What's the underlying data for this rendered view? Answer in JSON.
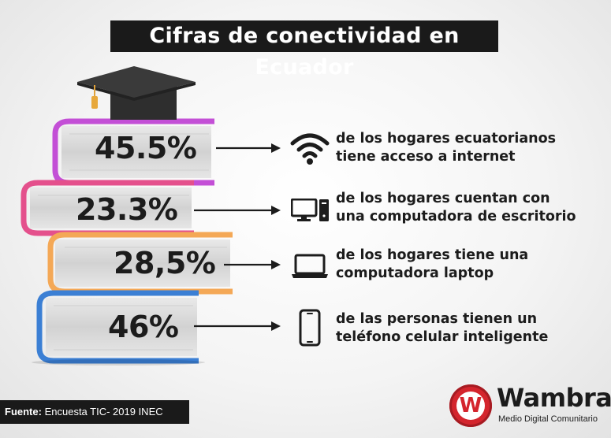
{
  "title": "Cifras de conectividad en Ecuador",
  "chart_data": {
    "type": "table",
    "title": "Cifras de conectividad en Ecuador",
    "rows": [
      {
        "value": "45.5%",
        "line1": "de los hogares ecuatorianos",
        "line2": "tiene acceso a internet",
        "icon": "wifi-icon",
        "color": "#c34fd6"
      },
      {
        "value": "23.3%",
        "line1": "de los hogares cuentan con",
        "line2": "una computadora de escritorio",
        "icon": "desktop-computer-icon",
        "color": "#e4508c"
      },
      {
        "value": "28,5%",
        "line1": "de los hogares tiene una",
        "line2": "computadora laptop",
        "icon": "laptop-icon",
        "color": "#f4a856"
      },
      {
        "value": "46%",
        "line1": "de las personas tienen un",
        "line2": "teléfono celular inteligente",
        "icon": "smartphone-icon",
        "color": "#3b7fd4"
      }
    ]
  },
  "source": {
    "label": "Fuente:",
    "text": "Encuesta TIC- 2019 INEC"
  },
  "logo": {
    "name": "Wambra",
    "tagline": "Medio Digital Comunitario",
    "letter": "W",
    "color": "#d4252d"
  }
}
